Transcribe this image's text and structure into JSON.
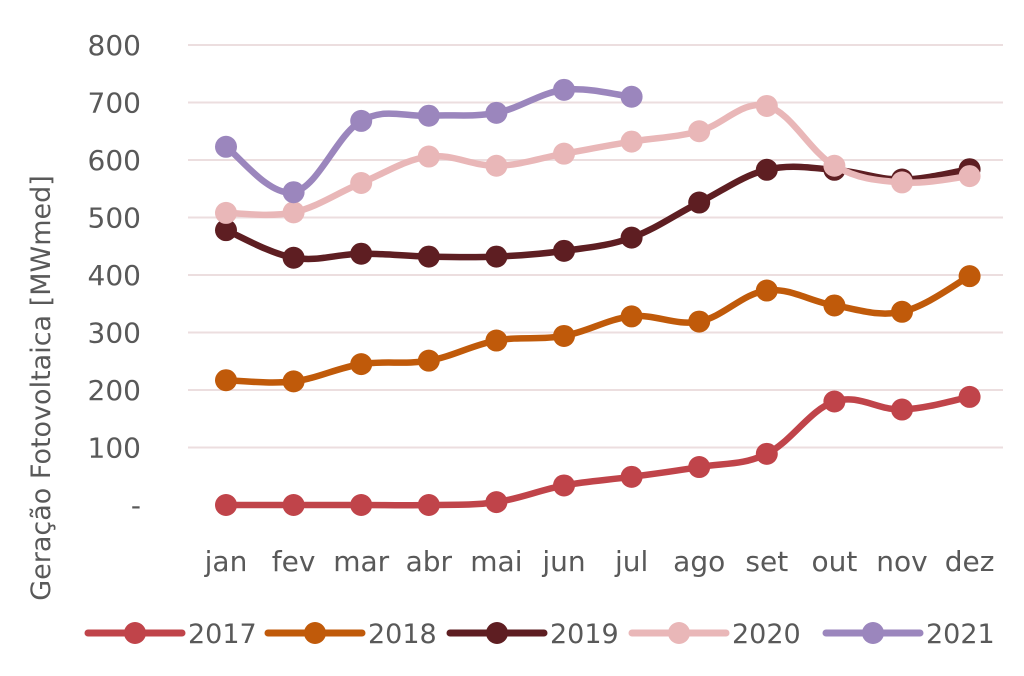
{
  "chart_data": {
    "type": "line",
    "title": "",
    "xlabel": "",
    "ylabel": "Geração Fotovoltaica [MWmed]",
    "categories": [
      "jan",
      "fev",
      "mar",
      "abr",
      "mai",
      "jun",
      "jul",
      "ago",
      "set",
      "out",
      "nov",
      "dez"
    ],
    "ylim": [
      0,
      800
    ],
    "yticks": [
      {
        "value": 0,
        "label": "-"
      },
      {
        "value": 100,
        "label": "100"
      },
      {
        "value": 200,
        "label": "200"
      },
      {
        "value": 300,
        "label": "300"
      },
      {
        "value": 400,
        "label": "400"
      },
      {
        "value": 500,
        "label": "500"
      },
      {
        "value": 600,
        "label": "600"
      },
      {
        "value": 700,
        "label": "700"
      },
      {
        "value": 800,
        "label": "800"
      }
    ],
    "grid": true,
    "legend_position": "bottom",
    "series": [
      {
        "name": "2017",
        "color": "#c0444a",
        "values": [
          0,
          0,
          0,
          0,
          5,
          34,
          49,
          66,
          89,
          180,
          166,
          188
        ]
      },
      {
        "name": "2018",
        "color": "#c05a0a",
        "values": [
          217,
          215,
          245,
          251,
          286,
          294,
          328,
          319,
          373,
          347,
          336,
          398
        ]
      },
      {
        "name": "2019",
        "color": "#5e1e22",
        "values": [
          478,
          430,
          437,
          432,
          432,
          442,
          465,
          526,
          583,
          583,
          566,
          584
        ]
      },
      {
        "name": "2020",
        "color": "#e9b7b8",
        "values": [
          508,
          509,
          560,
          606,
          590,
          611,
          632,
          650,
          694,
          590,
          561,
          572
        ]
      },
      {
        "name": "2021",
        "color": "#9b86bd",
        "values": [
          623,
          544,
          668,
          677,
          682,
          722,
          710,
          null,
          null,
          null,
          null,
          null
        ]
      }
    ]
  }
}
